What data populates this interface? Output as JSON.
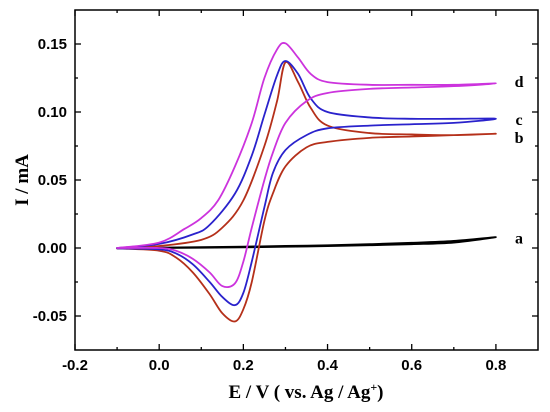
{
  "chart_data": {
    "type": "line",
    "title": "",
    "xlabel": "E / V ( vs. Ag / Ag",
    "xlabel_superscript": "+",
    "xlabel_suffix": ")",
    "ylabel": "I / mA",
    "xlim": [
      -0.2,
      0.9
    ],
    "ylim": [
      -0.075,
      0.175
    ],
    "xticks": [
      -0.2,
      0.0,
      0.2,
      0.4,
      0.6,
      0.8
    ],
    "xtick_labels": [
      "-0.2",
      "0.0",
      "0.2",
      "0.4",
      "0.6",
      "0.8"
    ],
    "yticks": [
      -0.05,
      0.0,
      0.05,
      0.1,
      0.15
    ],
    "ytick_labels": [
      "-0.05",
      "0.00",
      "0.05",
      "0.10",
      "0.15"
    ],
    "grid": false,
    "series": [
      {
        "name": "a",
        "color": "#000000",
        "x": [
          -0.1,
          0.0,
          0.1,
          0.2,
          0.3,
          0.4,
          0.5,
          0.6,
          0.7,
          0.8,
          0.7,
          0.6,
          0.5,
          0.4,
          0.3,
          0.2,
          0.1,
          0.0,
          -0.1
        ],
        "y": [
          0.0,
          0.0003,
          0.0006,
          0.001,
          0.0015,
          0.002,
          0.0028,
          0.0038,
          0.0052,
          0.008,
          0.004,
          0.0028,
          0.002,
          0.0014,
          0.0009,
          0.0005,
          0.0002,
          0.0,
          -0.0003
        ]
      },
      {
        "name": "b",
        "color": "#b5301a",
        "x": [
          -0.1,
          0.0,
          0.1,
          0.15,
          0.2,
          0.25,
          0.28,
          0.3,
          0.33,
          0.36,
          0.4,
          0.5,
          0.6,
          0.7,
          0.8,
          0.7,
          0.6,
          0.5,
          0.4,
          0.35,
          0.3,
          0.27,
          0.25,
          0.22,
          0.2,
          0.18,
          0.15,
          0.12,
          0.08,
          0.04,
          0.0,
          -0.1
        ],
        "y": [
          0.0,
          0.0015,
          0.006,
          0.015,
          0.035,
          0.075,
          0.108,
          0.1365,
          0.122,
          0.103,
          0.09,
          0.0845,
          0.0835,
          0.083,
          0.084,
          0.083,
          0.082,
          0.081,
          0.078,
          0.074,
          0.06,
          0.04,
          0.02,
          -0.025,
          -0.045,
          -0.054,
          -0.048,
          -0.034,
          -0.018,
          -0.007,
          -0.002,
          -0.0003
        ]
      },
      {
        "name": "c",
        "color": "#2a22cc",
        "x": [
          -0.1,
          0.0,
          0.08,
          0.12,
          0.18,
          0.22,
          0.25,
          0.28,
          0.3,
          0.33,
          0.36,
          0.4,
          0.5,
          0.6,
          0.7,
          0.8,
          0.7,
          0.6,
          0.5,
          0.4,
          0.35,
          0.3,
          0.27,
          0.25,
          0.22,
          0.2,
          0.18,
          0.15,
          0.12,
          0.08,
          0.04,
          0.0,
          -0.1
        ],
        "y": [
          0.0,
          0.003,
          0.01,
          0.017,
          0.04,
          0.068,
          0.098,
          0.127,
          0.1375,
          0.128,
          0.11,
          0.1,
          0.096,
          0.095,
          0.095,
          0.095,
          0.092,
          0.091,
          0.09,
          0.088,
          0.083,
          0.072,
          0.055,
          0.03,
          -0.01,
          -0.033,
          -0.042,
          -0.036,
          -0.025,
          -0.012,
          -0.004,
          -0.001,
          -0.0003
        ]
      },
      {
        "name": "d",
        "color": "#cc33dd",
        "x": [
          -0.1,
          0.0,
          0.06,
          0.1,
          0.14,
          0.18,
          0.22,
          0.25,
          0.28,
          0.3,
          0.33,
          0.36,
          0.4,
          0.5,
          0.6,
          0.7,
          0.8,
          0.7,
          0.6,
          0.5,
          0.4,
          0.35,
          0.3,
          0.27,
          0.25,
          0.22,
          0.2,
          0.18,
          0.15,
          0.12,
          0.08,
          0.04,
          0.0,
          -0.1
        ],
        "y": [
          0.0,
          0.004,
          0.014,
          0.022,
          0.035,
          0.06,
          0.092,
          0.125,
          0.146,
          0.1505,
          0.14,
          0.128,
          0.122,
          0.12,
          0.12,
          0.12,
          0.121,
          0.119,
          0.118,
          0.117,
          0.114,
          0.108,
          0.092,
          0.07,
          0.05,
          0.015,
          -0.01,
          -0.026,
          -0.028,
          -0.018,
          -0.008,
          -0.002,
          0.0,
          0.0
        ]
      }
    ],
    "curve_labels": [
      {
        "text": "a",
        "x": 0.855,
        "y": 0.007
      },
      {
        "text": "b",
        "x": 0.855,
        "y": 0.081
      },
      {
        "text": "c",
        "x": 0.855,
        "y": 0.094
      },
      {
        "text": "d",
        "x": 0.855,
        "y": 0.122
      }
    ]
  }
}
